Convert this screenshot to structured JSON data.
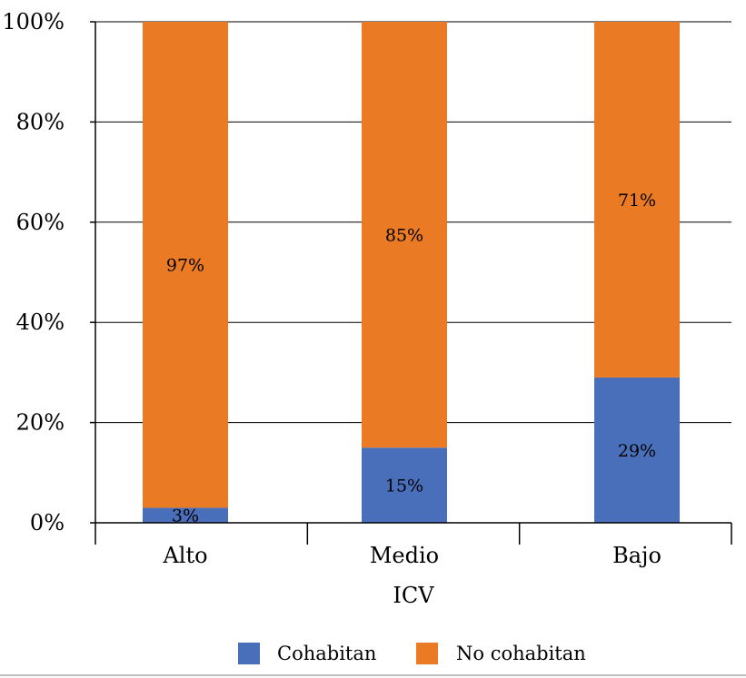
{
  "chart_data": {
    "type": "bar",
    "stacked": true,
    "categories": [
      "Alto",
      "Medio",
      "Bajo"
    ],
    "series": [
      {
        "name": "Cohabitan",
        "values": [
          3,
          15,
          29
        ],
        "labels": [
          "3%",
          "15%",
          "29%"
        ],
        "color": "#4a6fba"
      },
      {
        "name": "No cohabitan",
        "values": [
          97,
          85,
          71
        ],
        "labels": [
          "97%",
          "85%",
          "71%"
        ],
        "color": "#ea7a24"
      }
    ],
    "xlabel": "ICV",
    "ylabel": "",
    "ylim": [
      0,
      100
    ],
    "yticks": [
      0,
      20,
      40,
      60,
      80,
      100
    ],
    "ytick_labels": [
      "0%",
      "20%",
      "40%",
      "60%",
      "80%",
      "100%"
    ],
    "grid": true,
    "legend_position": "bottom"
  }
}
